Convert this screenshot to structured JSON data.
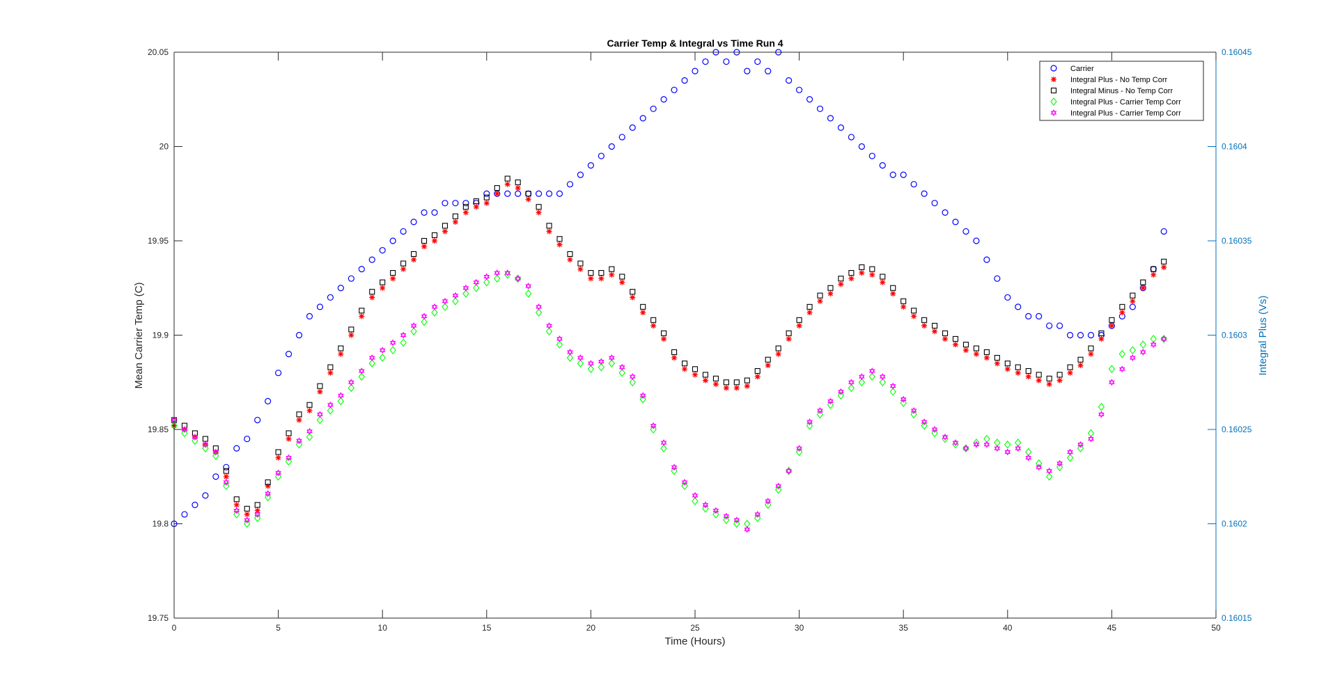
{
  "chart_data": {
    "type": "scatter",
    "title": "Carrier Temp & Integral vs Time Run 4",
    "xlabel": "Time (Hours)",
    "ylabel_left": "Mean Carrier Temp (C)",
    "ylabel_right": "Integral Plus (Vs)",
    "xlim": [
      0,
      50
    ],
    "ylim_left": [
      19.75,
      20.05
    ],
    "ylim_right": [
      0.16015,
      0.16045
    ],
    "xticks": [
      "0",
      "5",
      "10",
      "15",
      "20",
      "25",
      "30",
      "35",
      "40",
      "45",
      "50"
    ],
    "yticks_left": [
      "19.75",
      "19.8",
      "19.85",
      "19.9",
      "19.95",
      "20",
      "20.05"
    ],
    "yticks_right": [
      "0.16015",
      "0.1602",
      "0.16025",
      "0.1603",
      "0.16035",
      "0.1604",
      "0.16045"
    ],
    "grid": false,
    "legend_position": "top-right",
    "colors": {
      "carrier": "#0000ff",
      "integral_plus_no_corr": "#ff0000",
      "integral_minus_no_corr": "#000000",
      "integral_plus_corr_green": "#00ff00",
      "integral_plus_corr_magenta": "#ff00ff",
      "right_axis": "#0072bd"
    },
    "series": [
      {
        "name": "Carrier",
        "axis": "left",
        "marker": "circle",
        "color": "#0000ff",
        "x": [
          0.0,
          0.5,
          1.0,
          1.5,
          2.0,
          2.5,
          3.0,
          3.5,
          4.0,
          4.5,
          5.0,
          5.5,
          6.0,
          6.5,
          7.0,
          7.5,
          8.0,
          8.5,
          9.0,
          9.5,
          10.0,
          10.5,
          11.0,
          11.5,
          12.0,
          12.5,
          13.0,
          13.5,
          14.0,
          14.5,
          15.0,
          15.5,
          16.0,
          16.5,
          17.0,
          17.5,
          18.0,
          18.5,
          19.0,
          19.5,
          20.0,
          20.5,
          21.0,
          21.5,
          22.0,
          22.5,
          23.0,
          23.5,
          24.0,
          24.5,
          25.0,
          25.5,
          26.0,
          26.5,
          27.0,
          27.5,
          28.0,
          28.5,
          29.0,
          29.5,
          30.0,
          30.5,
          31.0,
          31.5,
          32.0,
          32.5,
          33.0,
          33.5,
          34.0,
          34.5,
          35.0,
          35.5,
          36.0,
          36.5,
          37.0,
          37.5,
          38.0,
          38.5,
          39.0,
          39.5,
          40.0,
          40.5,
          41.0,
          41.5,
          42.0,
          42.5,
          43.0,
          43.5,
          44.0,
          44.5,
          45.0,
          45.5,
          46.0,
          46.5,
          47.0,
          47.5
        ],
        "y": [
          19.8,
          19.805,
          19.81,
          19.815,
          19.825,
          19.83,
          19.84,
          19.845,
          19.855,
          19.865,
          19.88,
          19.89,
          19.9,
          19.91,
          19.915,
          19.92,
          19.925,
          19.93,
          19.935,
          19.94,
          19.945,
          19.95,
          19.955,
          19.96,
          19.965,
          19.965,
          19.97,
          19.97,
          19.97,
          19.97,
          19.975,
          19.975,
          19.975,
          19.975,
          19.975,
          19.975,
          19.975,
          19.975,
          19.98,
          19.985,
          19.99,
          19.995,
          20.0,
          20.005,
          20.01,
          20.015,
          20.02,
          20.025,
          20.03,
          20.035,
          20.04,
          20.045,
          20.05,
          20.045,
          20.05,
          20.04,
          20.045,
          20.04,
          20.05,
          20.035,
          20.03,
          20.025,
          20.02,
          20.015,
          20.01,
          20.005,
          20.0,
          19.995,
          19.99,
          19.985,
          19.985,
          19.98,
          19.975,
          19.97,
          19.965,
          19.96,
          19.955,
          19.95,
          19.94,
          19.93,
          19.92,
          19.915,
          19.91,
          19.91,
          19.905,
          19.905,
          19.9,
          19.9,
          19.9,
          19.9,
          19.905,
          19.91,
          19.915,
          19.925,
          19.935,
          19.955
        ]
      },
      {
        "name": "Integral Plus -  No Temp Corr",
        "axis": "right",
        "marker": "asterisk",
        "color": "#ff0000",
        "x": [
          0.0,
          0.5,
          1.0,
          1.5,
          2.0,
          2.5,
          3.0,
          3.5,
          4.0,
          4.5,
          5.0,
          5.5,
          6.0,
          6.5,
          7.0,
          7.5,
          8.0,
          8.5,
          9.0,
          9.5,
          10.0,
          10.5,
          11.0,
          11.5,
          12.0,
          12.5,
          13.0,
          13.5,
          14.0,
          14.5,
          15.0,
          15.5,
          16.0,
          16.5,
          17.0,
          17.5,
          18.0,
          18.5,
          19.0,
          19.5,
          20.0,
          20.5,
          21.0,
          21.5,
          22.0,
          22.5,
          23.0,
          23.5,
          24.0,
          24.5,
          25.0,
          25.5,
          26.0,
          26.5,
          27.0,
          27.5,
          28.0,
          28.5,
          29.0,
          29.5,
          30.0,
          30.5,
          31.0,
          31.5,
          32.0,
          32.5,
          33.0,
          33.5,
          34.0,
          34.5,
          35.0,
          35.5,
          36.0,
          36.5,
          37.0,
          37.5,
          38.0,
          38.5,
          39.0,
          39.5,
          40.0,
          40.5,
          41.0,
          41.5,
          42.0,
          42.5,
          43.0,
          43.5,
          44.0,
          44.5,
          45.0,
          45.5,
          46.0,
          46.5,
          47.0,
          47.5
        ],
        "y": [
          0.160252,
          0.16025,
          0.160246,
          0.160242,
          0.160238,
          0.160225,
          0.16021,
          0.160205,
          0.160207,
          0.16022,
          0.160235,
          0.160245,
          0.160255,
          0.16026,
          0.16027,
          0.16028,
          0.16029,
          0.1603,
          0.16031,
          0.16032,
          0.160325,
          0.16033,
          0.160335,
          0.16034,
          0.160347,
          0.16035,
          0.160355,
          0.16036,
          0.160365,
          0.160368,
          0.16037,
          0.160375,
          0.16038,
          0.160378,
          0.160372,
          0.160365,
          0.160355,
          0.160348,
          0.16034,
          0.160335,
          0.16033,
          0.16033,
          0.160332,
          0.160328,
          0.16032,
          0.160312,
          0.160305,
          0.160298,
          0.160288,
          0.160282,
          0.160279,
          0.160276,
          0.160274,
          0.160272,
          0.160272,
          0.160273,
          0.160278,
          0.160284,
          0.16029,
          0.160298,
          0.160305,
          0.160312,
          0.160318,
          0.160322,
          0.160327,
          0.16033,
          0.160333,
          0.160332,
          0.160328,
          0.160322,
          0.160315,
          0.16031,
          0.160305,
          0.160302,
          0.160298,
          0.160295,
          0.160292,
          0.16029,
          0.160288,
          0.160285,
          0.160282,
          0.16028,
          0.160278,
          0.160276,
          0.160274,
          0.160276,
          0.16028,
          0.160284,
          0.16029,
          0.160298,
          0.160305,
          0.160312,
          0.160318,
          0.160325,
          0.160332,
          0.160336
        ]
      },
      {
        "name": "Integral Minus -  No Temp Corr",
        "axis": "right",
        "marker": "square",
        "color": "#000000",
        "x": [
          0.0,
          0.5,
          1.0,
          1.5,
          2.0,
          2.5,
          3.0,
          3.5,
          4.0,
          4.5,
          5.0,
          5.5,
          6.0,
          6.5,
          7.0,
          7.5,
          8.0,
          8.5,
          9.0,
          9.5,
          10.0,
          10.5,
          11.0,
          11.5,
          12.0,
          12.5,
          13.0,
          13.5,
          14.0,
          14.5,
          15.0,
          15.5,
          16.0,
          16.5,
          17.0,
          17.5,
          18.0,
          18.5,
          19.0,
          19.5,
          20.0,
          20.5,
          21.0,
          21.5,
          22.0,
          22.5,
          23.0,
          23.5,
          24.0,
          24.5,
          25.0,
          25.5,
          26.0,
          26.5,
          27.0,
          27.5,
          28.0,
          28.5,
          29.0,
          29.5,
          30.0,
          30.5,
          31.0,
          31.5,
          32.0,
          32.5,
          33.0,
          33.5,
          34.0,
          34.5,
          35.0,
          35.5,
          36.0,
          36.5,
          37.0,
          37.5,
          38.0,
          38.5,
          39.0,
          39.5,
          40.0,
          40.5,
          41.0,
          41.5,
          42.0,
          42.5,
          43.0,
          43.5,
          44.0,
          44.5,
          45.0,
          45.5,
          46.0,
          46.5,
          47.0,
          47.5
        ],
        "y": [
          0.160255,
          0.160252,
          0.160248,
          0.160245,
          0.16024,
          0.160228,
          0.160213,
          0.160208,
          0.16021,
          0.160222,
          0.160238,
          0.160248,
          0.160258,
          0.160263,
          0.160273,
          0.160283,
          0.160293,
          0.160303,
          0.160313,
          0.160323,
          0.160328,
          0.160333,
          0.160338,
          0.160343,
          0.16035,
          0.160353,
          0.160358,
          0.160363,
          0.160368,
          0.160371,
          0.160373,
          0.160378,
          0.160383,
          0.160381,
          0.160375,
          0.160368,
          0.160358,
          0.160351,
          0.160343,
          0.160338,
          0.160333,
          0.160333,
          0.160335,
          0.160331,
          0.160323,
          0.160315,
          0.160308,
          0.160301,
          0.160291,
          0.160285,
          0.160282,
          0.160279,
          0.160277,
          0.160275,
          0.160275,
          0.160276,
          0.160281,
          0.160287,
          0.160293,
          0.160301,
          0.160308,
          0.160315,
          0.160321,
          0.160325,
          0.16033,
          0.160333,
          0.160336,
          0.160335,
          0.160331,
          0.160325,
          0.160318,
          0.160313,
          0.160308,
          0.160305,
          0.160301,
          0.160298,
          0.160295,
          0.160293,
          0.160291,
          0.160288,
          0.160285,
          0.160283,
          0.160281,
          0.160279,
          0.160277,
          0.160279,
          0.160283,
          0.160287,
          0.160293,
          0.160301,
          0.160308,
          0.160315,
          0.160321,
          0.160328,
          0.160335,
          0.160339
        ]
      },
      {
        "name": "Integral Plus -  Carrier Temp Corr",
        "axis": "right",
        "marker": "diamond",
        "color": "#00ff00",
        "x": [
          0.0,
          0.5,
          1.0,
          1.5,
          2.0,
          2.5,
          3.0,
          3.5,
          4.0,
          4.5,
          5.0,
          5.5,
          6.0,
          6.5,
          7.0,
          7.5,
          8.0,
          8.5,
          9.0,
          9.5,
          10.0,
          10.5,
          11.0,
          11.5,
          12.0,
          12.5,
          13.0,
          13.5,
          14.0,
          14.5,
          15.0,
          15.5,
          16.0,
          16.5,
          17.0,
          17.5,
          18.0,
          18.5,
          19.0,
          19.5,
          20.0,
          20.5,
          21.0,
          21.5,
          22.0,
          22.5,
          23.0,
          23.5,
          24.0,
          24.5,
          25.0,
          25.5,
          26.0,
          26.5,
          27.0,
          27.5,
          28.0,
          28.5,
          29.0,
          29.5,
          30.0,
          30.5,
          31.0,
          31.5,
          32.0,
          32.5,
          33.0,
          33.5,
          34.0,
          34.5,
          35.0,
          35.5,
          36.0,
          36.5,
          37.0,
          37.5,
          38.0,
          38.5,
          39.0,
          39.5,
          40.0,
          40.5,
          41.0,
          41.5,
          42.0,
          42.5,
          43.0,
          43.5,
          44.0,
          44.5,
          45.0,
          45.5,
          46.0,
          46.5,
          47.0,
          47.5
        ],
        "y": [
          0.160252,
          0.160248,
          0.160244,
          0.16024,
          0.160236,
          0.16022,
          0.160205,
          0.1602,
          0.160203,
          0.160214,
          0.160225,
          0.160233,
          0.160242,
          0.160246,
          0.160255,
          0.16026,
          0.160265,
          0.160272,
          0.160278,
          0.160285,
          0.160288,
          0.160292,
          0.160296,
          0.160302,
          0.160307,
          0.160312,
          0.160315,
          0.160318,
          0.160322,
          0.160325,
          0.160328,
          0.16033,
          0.160332,
          0.16033,
          0.160322,
          0.160312,
          0.160302,
          0.160295,
          0.160288,
          0.160285,
          0.160282,
          0.160283,
          0.160285,
          0.16028,
          0.160275,
          0.160266,
          0.16025,
          0.16024,
          0.160228,
          0.16022,
          0.160212,
          0.160208,
          0.160205,
          0.160202,
          0.1602,
          0.1602,
          0.160203,
          0.16021,
          0.160218,
          0.160228,
          0.160238,
          0.160252,
          0.160258,
          0.160263,
          0.160268,
          0.160272,
          0.160275,
          0.160278,
          0.160275,
          0.16027,
          0.160264,
          0.160258,
          0.160252,
          0.160248,
          0.160245,
          0.160242,
          0.16024,
          0.160243,
          0.160245,
          0.160243,
          0.160242,
          0.160243,
          0.160238,
          0.160232,
          0.160225,
          0.16023,
          0.160235,
          0.16024,
          0.160248,
          0.160262,
          0.160282,
          0.16029,
          0.160292,
          0.160295,
          0.160298,
          0.160298
        ]
      },
      {
        "name": "Integral Plus -  Carrier Temp Corr",
        "axis": "right",
        "marker": "hexagram",
        "color": "#ff00ff",
        "x": [
          0.0,
          0.5,
          1.0,
          1.5,
          2.0,
          2.5,
          3.0,
          3.5,
          4.0,
          4.5,
          5.0,
          5.5,
          6.0,
          6.5,
          7.0,
          7.5,
          8.0,
          8.5,
          9.0,
          9.5,
          10.0,
          10.5,
          11.0,
          11.5,
          12.0,
          12.5,
          13.0,
          13.5,
          14.0,
          14.5,
          15.0,
          15.5,
          16.0,
          16.5,
          17.0,
          17.5,
          18.0,
          18.5,
          19.0,
          19.5,
          20.0,
          20.5,
          21.0,
          21.5,
          22.0,
          22.5,
          23.0,
          23.5,
          24.0,
          24.5,
          25.0,
          25.5,
          26.0,
          26.5,
          27.0,
          27.5,
          28.0,
          28.5,
          29.0,
          29.5,
          30.0,
          30.5,
          31.0,
          31.5,
          32.0,
          32.5,
          33.0,
          33.5,
          34.0,
          34.5,
          35.0,
          35.5,
          36.0,
          36.5,
          37.0,
          37.5,
          38.0,
          38.5,
          39.0,
          39.5,
          40.0,
          40.5,
          41.0,
          41.5,
          42.0,
          42.5,
          43.0,
          43.5,
          44.0,
          44.5,
          45.0,
          45.5,
          46.0,
          46.5,
          47.0,
          47.5
        ],
        "y": [
          0.160255,
          0.16025,
          0.160246,
          0.160242,
          0.160238,
          0.160222,
          0.160207,
          0.160202,
          0.160205,
          0.160216,
          0.160227,
          0.160235,
          0.160244,
          0.160249,
          0.160258,
          0.160263,
          0.160268,
          0.160275,
          0.160281,
          0.160288,
          0.160292,
          0.160296,
          0.1603,
          0.160305,
          0.16031,
          0.160315,
          0.160318,
          0.160321,
          0.160325,
          0.160328,
          0.160331,
          0.160333,
          0.160333,
          0.16033,
          0.160326,
          0.160315,
          0.160305,
          0.160298,
          0.160291,
          0.160288,
          0.160285,
          0.160286,
          0.160288,
          0.160283,
          0.160278,
          0.160268,
          0.160252,
          0.160243,
          0.16023,
          0.160222,
          0.160215,
          0.16021,
          0.160207,
          0.160204,
          0.160202,
          0.160197,
          0.160205,
          0.160212,
          0.16022,
          0.160228,
          0.16024,
          0.160254,
          0.16026,
          0.160265,
          0.16027,
          0.160275,
          0.160278,
          0.160281,
          0.160278,
          0.160273,
          0.160266,
          0.16026,
          0.160254,
          0.16025,
          0.160246,
          0.160243,
          0.16024,
          0.160242,
          0.160242,
          0.16024,
          0.160238,
          0.16024,
          0.160235,
          0.16023,
          0.160228,
          0.160232,
          0.160238,
          0.160242,
          0.160245,
          0.160258,
          0.160275,
          0.160282,
          0.160288,
          0.160291,
          0.160295,
          0.160298
        ]
      }
    ]
  }
}
